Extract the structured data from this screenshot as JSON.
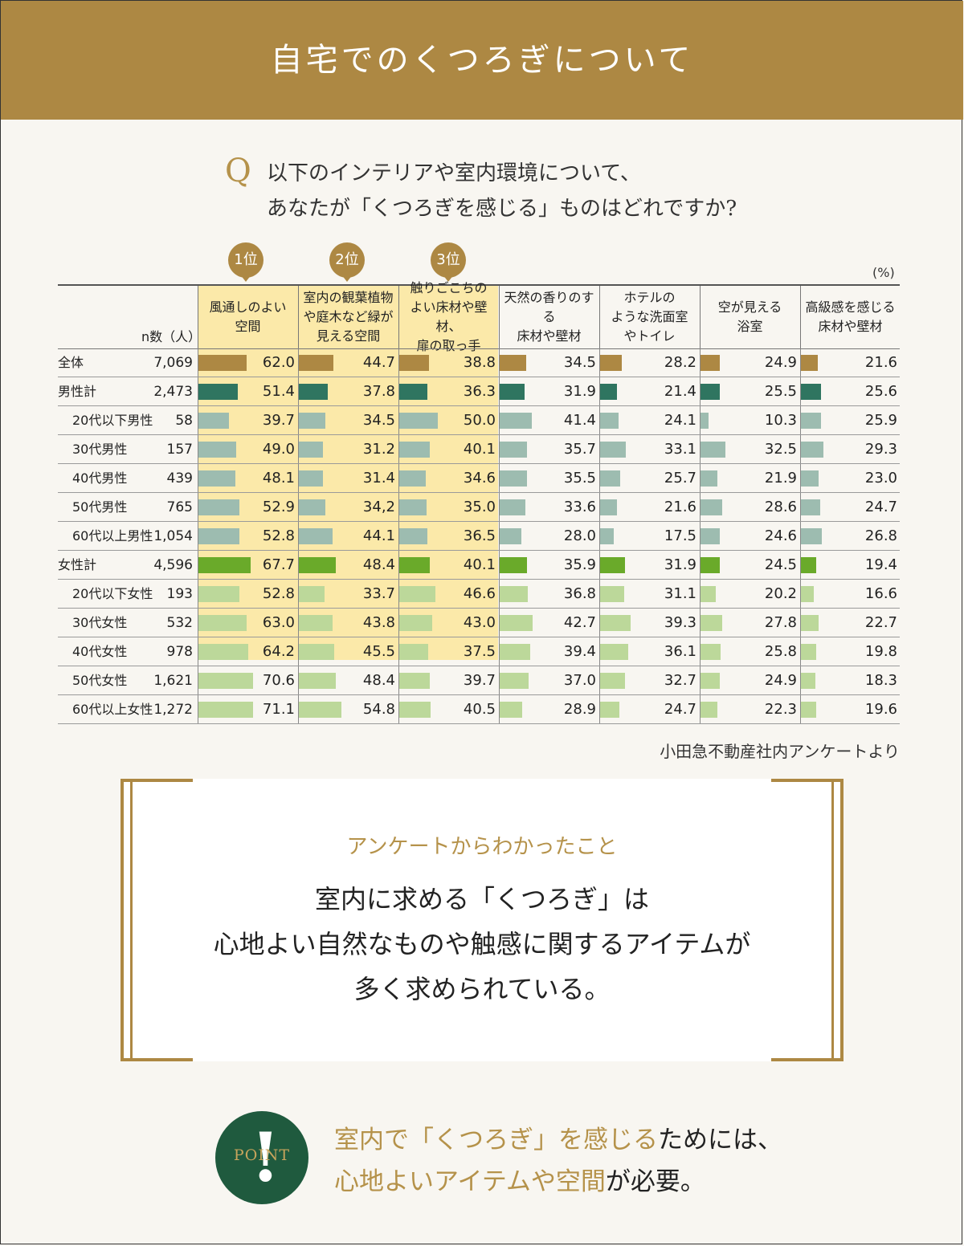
{
  "header": {
    "title": "自宅でのくつろぎについて"
  },
  "question": {
    "mark": "Q",
    "line1": "以下のインテリアや室内環境について、",
    "line2": "あなたが「くつろぎを感じる」ものはどれですか?"
  },
  "ranks": [
    "1位",
    "2位",
    "3位"
  ],
  "unit": "(%)",
  "ncount_header": "n数（人）",
  "colors": {
    "gold": "#ad8843",
    "dark_green": "#2f7560",
    "gray_green": "#9dbcb0",
    "bright_green": "#6aaa2a",
    "light_green": "#bcd89a",
    "highlight": "#fbe9a9",
    "point_bg": "#1f5a3e"
  },
  "chart_data": {
    "type": "bar",
    "title": "",
    "categories": [
      "風通しのよい空間",
      "室内の観葉植物や庭木など緑が見える空間",
      "触りごこちのよい床材や壁材、扉の取っ手",
      "天然の香りのする床材や壁材",
      "ホテルのような洗面室やトイレ",
      "空が見える浴室",
      "高級感を感じる床材や壁材"
    ],
    "category_lines": [
      [
        "風通しのよい",
        "空間"
      ],
      [
        "室内の観葉植物",
        "や庭木など緑が",
        "見える空間"
      ],
      [
        "触りごこちの",
        "よい床材や壁材、",
        "扉の取っ手"
      ],
      [
        "天然の香りのする",
        "床材や壁材"
      ],
      [
        "ホテルの",
        "ような洗面室",
        "やトイレ"
      ],
      [
        "空が見える",
        "浴室"
      ],
      [
        "高級感を感じる",
        "床材や壁材"
      ]
    ],
    "series": [
      {
        "name": "全体",
        "n": "7,069",
        "group": "total",
        "values": [
          62.0,
          44.7,
          38.8,
          34.5,
          28.2,
          24.9,
          21.6
        ],
        "labels": [
          "62.0",
          "44.7",
          "38.8",
          "34.5",
          "28.2",
          "24.9",
          "21.6"
        ]
      },
      {
        "name": "男性計",
        "n": "2,473",
        "group": "male_total",
        "values": [
          51.4,
          37.8,
          36.3,
          31.9,
          21.4,
          25.5,
          25.6
        ],
        "labels": [
          "51.4",
          "37.8",
          "36.3",
          "31.9",
          "21.4",
          "25.5",
          "25.6"
        ]
      },
      {
        "name": "20代以下男性",
        "n": "58",
        "group": "male",
        "values": [
          39.7,
          34.5,
          50.0,
          41.4,
          24.1,
          10.3,
          25.9
        ],
        "labels": [
          "39.7",
          "34.5",
          "50.0",
          "41.4",
          "24.1",
          "10.3",
          "25.9"
        ]
      },
      {
        "name": "30代男性",
        "n": "157",
        "group": "male",
        "values": [
          49.0,
          31.2,
          40.1,
          35.7,
          33.1,
          32.5,
          29.3
        ],
        "labels": [
          "49.0",
          "31.2",
          "40.1",
          "35.7",
          "33.1",
          "32.5",
          "29.3"
        ]
      },
      {
        "name": "40代男性",
        "n": "439",
        "group": "male",
        "values": [
          48.1,
          31.4,
          34.6,
          35.5,
          25.7,
          21.9,
          23.0
        ],
        "labels": [
          "48.1",
          "31.4",
          "34.6",
          "35.5",
          "25.7",
          "21.9",
          "23.0"
        ]
      },
      {
        "name": "50代男性",
        "n": "765",
        "group": "male",
        "values": [
          52.9,
          34.2,
          35.0,
          33.6,
          21.6,
          28.6,
          24.7
        ],
        "labels": [
          "52.9",
          "34,2",
          "35.0",
          "33.6",
          "21.6",
          "28.6",
          "24.7"
        ]
      },
      {
        "name": "60代以上男性",
        "n": "1,054",
        "group": "male",
        "values": [
          52.8,
          44.1,
          36.5,
          28.0,
          17.5,
          24.6,
          26.8
        ],
        "labels": [
          "52.8",
          "44.1",
          "36.5",
          "28.0",
          "17.5",
          "24.6",
          "26.8"
        ]
      },
      {
        "name": "女性計",
        "n": "4,596",
        "group": "female_total",
        "values": [
          67.7,
          48.4,
          40.1,
          35.9,
          31.9,
          24.5,
          19.4
        ],
        "labels": [
          "67.7",
          "48.4",
          "40.1",
          "35.9",
          "31.9",
          "24.5",
          "19.4"
        ]
      },
      {
        "name": "20代以下女性",
        "n": "193",
        "group": "female",
        "values": [
          52.8,
          33.7,
          46.6,
          36.8,
          31.1,
          20.2,
          16.6
        ],
        "labels": [
          "52.8",
          "33.7",
          "46.6",
          "36.8",
          "31.1",
          "20.2",
          "16.6"
        ]
      },
      {
        "name": "30代女性",
        "n": "532",
        "group": "female",
        "values": [
          63.0,
          43.8,
          43.0,
          42.7,
          39.3,
          27.8,
          22.7
        ],
        "labels": [
          "63.0",
          "43.8",
          "43.0",
          "42.7",
          "39.3",
          "27.8",
          "22.7"
        ]
      },
      {
        "name": "40代女性",
        "n": "978",
        "group": "female",
        "values": [
          64.2,
          45.5,
          37.5,
          39.4,
          36.1,
          25.8,
          19.8
        ],
        "labels": [
          "64.2",
          "45.5",
          "37.5",
          "39.4",
          "36.1",
          "25.8",
          "19.8"
        ]
      },
      {
        "name": "50代女性",
        "n": "1,621",
        "group": "female",
        "values": [
          70.6,
          48.4,
          39.7,
          37.0,
          32.7,
          24.9,
          18.3
        ],
        "labels": [
          "70.6",
          "48.4",
          "39.7",
          "37.0",
          "32.7",
          "24.9",
          "18.3"
        ]
      },
      {
        "name": "60代以上女性",
        "n": "1,272",
        "group": "female",
        "values": [
          71.1,
          54.8,
          40.5,
          28.9,
          24.7,
          22.3,
          19.6
        ],
        "labels": [
          "71.1",
          "54.8",
          "40.5",
          "28.9",
          "24.7",
          "22.3",
          "19.6"
        ]
      }
    ],
    "highlighted_categories": [
      0,
      1,
      2
    ],
    "ylim": [
      0,
      100
    ]
  },
  "source": "小田急不動産社内アンケートより",
  "findings": {
    "subtitle": "アンケートからわかったこと",
    "line1": "室内に求める「くつろぎ」は",
    "line2": "心地よい自然なものや触感に関するアイテムが",
    "line3": "多く求められている。"
  },
  "point": {
    "mark": "!",
    "label": "POINT",
    "line1_gold": "室内で「くつろぎ」を感じる",
    "line1_rest": "ためには、",
    "line2_gold": "心地よいアイテムや空間",
    "line2_rest": "が必要。"
  }
}
